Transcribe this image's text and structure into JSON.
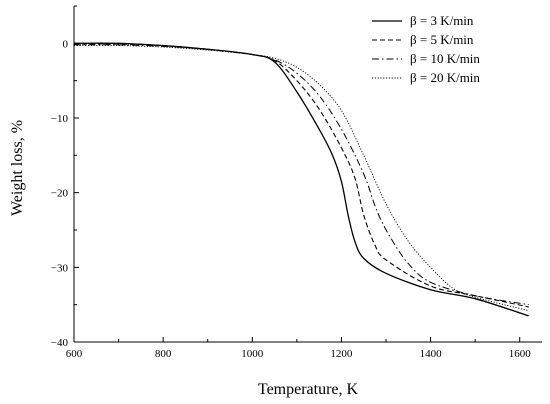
{
  "chart_data": {
    "type": "line",
    "title": "",
    "xlabel": "Temperature, K",
    "ylabel": "Weight loss, %",
    "xlim": [
      600,
      1650
    ],
    "ylim": [
      -40,
      5
    ],
    "xticks": [
      600,
      800,
      1000,
      1200,
      1400,
      1600
    ],
    "yticks": [
      0,
      -10,
      -20,
      -30,
      -40
    ],
    "grid": false,
    "legend_position": "top-right",
    "series": [
      {
        "name": "β = 3 K/min",
        "style": "solid",
        "points": [
          [
            600,
            0.0
          ],
          [
            700,
            0.0
          ],
          [
            800,
            -0.3
          ],
          [
            900,
            -0.8
          ],
          [
            1000,
            -1.5
          ],
          [
            1050,
            -2.5
          ],
          [
            1100,
            -6.5
          ],
          [
            1150,
            -11.5
          ],
          [
            1180,
            -15.0
          ],
          [
            1200,
            -18.5
          ],
          [
            1215,
            -23.0
          ],
          [
            1230,
            -26.5
          ],
          [
            1250,
            -28.8
          ],
          [
            1300,
            -30.8
          ],
          [
            1400,
            -33.0
          ],
          [
            1500,
            -34.2
          ],
          [
            1620,
            -36.5
          ]
        ]
      },
      {
        "name": "β = 5 K/min",
        "style": "dashed",
        "points": [
          [
            600,
            -0.1
          ],
          [
            700,
            -0.1
          ],
          [
            800,
            -0.3
          ],
          [
            900,
            -0.8
          ],
          [
            1000,
            -1.5
          ],
          [
            1050,
            -2.3
          ],
          [
            1100,
            -5.0
          ],
          [
            1150,
            -8.8
          ],
          [
            1200,
            -14.0
          ],
          [
            1230,
            -18.0
          ],
          [
            1250,
            -23.0
          ],
          [
            1275,
            -27.0
          ],
          [
            1300,
            -29.0
          ],
          [
            1400,
            -32.5
          ],
          [
            1500,
            -33.8
          ],
          [
            1620,
            -35.3
          ]
        ]
      },
      {
        "name": "β = 10 K/min",
        "style": "dashdot",
        "points": [
          [
            600,
            -0.2
          ],
          [
            700,
            -0.2
          ],
          [
            800,
            -0.4
          ],
          [
            900,
            -0.8
          ],
          [
            1000,
            -1.5
          ],
          [
            1050,
            -2.2
          ],
          [
            1100,
            -4.0
          ],
          [
            1150,
            -7.0
          ],
          [
            1200,
            -11.5
          ],
          [
            1250,
            -17.5
          ],
          [
            1280,
            -22.5
          ],
          [
            1310,
            -26.0
          ],
          [
            1350,
            -29.5
          ],
          [
            1400,
            -32.0
          ],
          [
            1500,
            -33.8
          ],
          [
            1620,
            -35.0
          ]
        ]
      },
      {
        "name": "β = 20 K/min",
        "style": "dotted",
        "points": [
          [
            600,
            -0.3
          ],
          [
            700,
            -0.3
          ],
          [
            800,
            -0.5
          ],
          [
            900,
            -0.9
          ],
          [
            1000,
            -1.5
          ],
          [
            1050,
            -2.0
          ],
          [
            1100,
            -3.2
          ],
          [
            1150,
            -5.5
          ],
          [
            1200,
            -9.0
          ],
          [
            1250,
            -15.0
          ],
          [
            1300,
            -21.5
          ],
          [
            1350,
            -26.5
          ],
          [
            1400,
            -30.0
          ],
          [
            1450,
            -32.8
          ],
          [
            1500,
            -34.0
          ],
          [
            1620,
            -35.8
          ]
        ]
      }
    ]
  }
}
